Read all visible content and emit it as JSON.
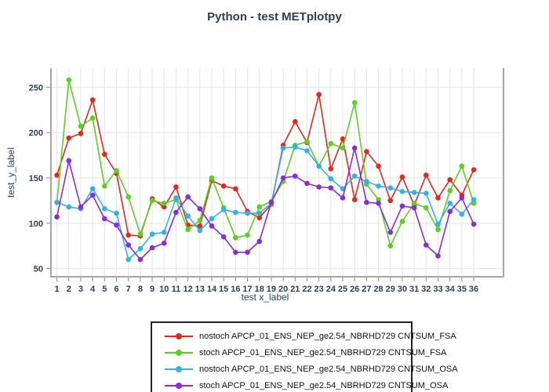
{
  "title": "Python - test METplotpy",
  "colors": {
    "title_text": "#2a3f5f",
    "grid": "#e5e5e5",
    "spine": "#a6a6a6",
    "tick": "#888888",
    "legend_border": "#222222"
  },
  "chart_data": {
    "type": "line",
    "title": "Python - test METplotpy",
    "xlabel": "test x_label",
    "ylabel": "test_y_label",
    "x": [
      1,
      2,
      3,
      4,
      5,
      6,
      7,
      8,
      9,
      10,
      11,
      12,
      13,
      14,
      15,
      16,
      17,
      18,
      19,
      20,
      21,
      22,
      23,
      24,
      25,
      26,
      27,
      28,
      29,
      30,
      31,
      32,
      33,
      34,
      35,
      36
    ],
    "xticks": [
      1,
      2,
      3,
      4,
      5,
      6,
      7,
      8,
      9,
      10,
      11,
      12,
      13,
      14,
      15,
      16,
      17,
      18,
      19,
      20,
      21,
      22,
      23,
      24,
      25,
      26,
      27,
      28,
      29,
      30,
      31,
      32,
      33,
      34,
      35,
      36
    ],
    "yticks": [
      50,
      100,
      150,
      200,
      250
    ],
    "xlim": [
      0.5,
      38.5
    ],
    "ylim": [
      41,
      271
    ],
    "grid": true,
    "legend_position": "bottom",
    "series": [
      {
        "name": "nostoch APCP_01_ENS_NEP_ge2.54_NBRHD729 CNTSUM_FSA",
        "color": "#e8261a",
        "values": [
          153,
          194,
          199,
          236,
          176,
          155,
          87,
          86,
          127,
          118,
          140,
          98,
          97,
          147,
          141,
          138,
          113,
          106,
          121,
          186,
          212,
          189,
          242,
          160,
          193,
          126,
          179,
          163,
          125,
          151,
          120,
          153,
          128,
          148,
          131,
          159
        ]
      },
      {
        "name": "stoch APCP_01_ENS_NEP_ge2.54_NBRHD729 CNTSUM_FSA",
        "color": "#56d41c",
        "values": [
          123,
          258,
          207,
          216,
          141,
          158,
          129,
          88,
          125,
          122,
          126,
          93,
          103,
          150,
          117,
          84,
          87,
          118,
          124,
          146,
          186,
          190,
          163,
          188,
          183,
          233,
          143,
          126,
          75,
          102,
          122,
          117,
          93,
          136,
          163,
          122
        ]
      },
      {
        "name": "nostoch APCP_01_ENS_NEP_ge2.54_NBRHD729 CNTSUM_OSA",
        "color": "#2fb3ea",
        "values": [
          123,
          118,
          116,
          138,
          116,
          111,
          60,
          72,
          88,
          90,
          128,
          108,
          92,
          105,
          115,
          112,
          111,
          111,
          122,
          183,
          184,
          180,
          163,
          149,
          138,
          152,
          146,
          141,
          139,
          135,
          134,
          133,
          99,
          122,
          110,
          126
        ]
      },
      {
        "name": "stoch APCP_01_ENS_NEP_ge2.54_NBRHD729 CNTSUM_OSA",
        "color": "#8a2be2",
        "values": [
          107,
          169,
          118,
          131,
          105,
          98,
          76,
          60,
          73,
          78,
          112,
          129,
          116,
          97,
          85,
          68,
          68,
          80,
          123,
          150,
          152,
          144,
          140,
          139,
          128,
          183,
          123,
          122,
          90,
          119,
          117,
          76,
          64,
          113,
          128,
          99
        ]
      }
    ]
  }
}
